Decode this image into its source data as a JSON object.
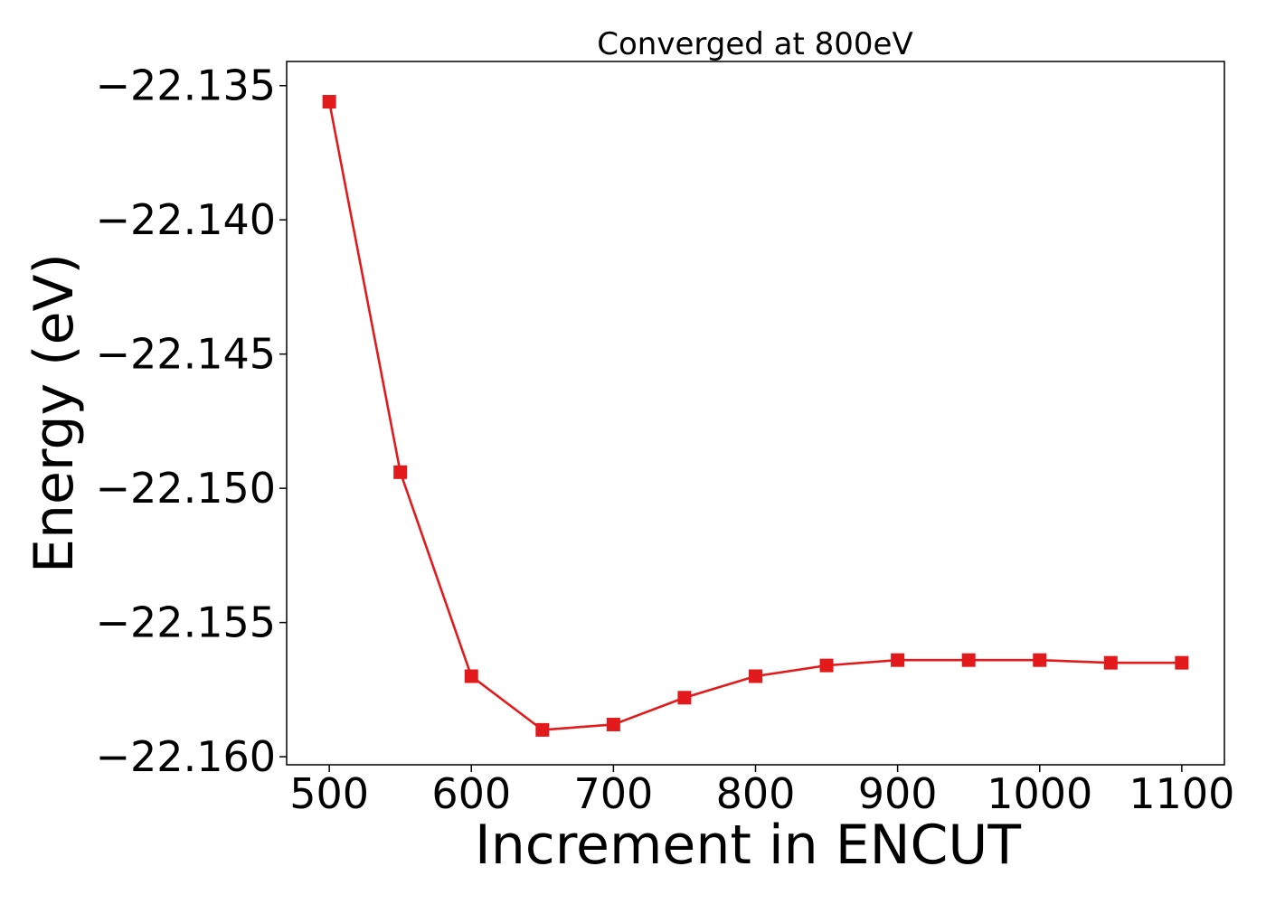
{
  "chart_data": {
    "type": "line",
    "title": "Converged at 800eV",
    "xlabel": "Increment in ENCUT",
    "ylabel": "Energy (eV)",
    "xlim": [
      470,
      1130
    ],
    "ylim": [
      -22.1603,
      -22.1341
    ],
    "x_ticks": [
      {
        "value": 500,
        "label": "500"
      },
      {
        "value": 600,
        "label": "600"
      },
      {
        "value": 700,
        "label": "700"
      },
      {
        "value": 800,
        "label": "800"
      },
      {
        "value": 900,
        "label": "900"
      },
      {
        "value": 1000,
        "label": "1000"
      },
      {
        "value": 1100,
        "label": "1100"
      }
    ],
    "y_ticks": [
      {
        "value": -22.135,
        "label": "−22.135"
      },
      {
        "value": -22.14,
        "label": "−22.140"
      },
      {
        "value": -22.145,
        "label": "−22.145"
      },
      {
        "value": -22.15,
        "label": "−22.150"
      },
      {
        "value": -22.155,
        "label": "−22.155"
      },
      {
        "value": -22.16,
        "label": "−22.160"
      }
    ],
    "grid": false,
    "series": [
      {
        "color": "#e31a1c",
        "marker": "square",
        "x": [
          500,
          550,
          600,
          650,
          700,
          750,
          800,
          850,
          900,
          950,
          1000,
          1050,
          1100
        ],
        "y": [
          -22.1356,
          -22.1494,
          -22.157,
          -22.159,
          -22.1588,
          -22.1578,
          -22.157,
          -22.1566,
          -22.1564,
          -22.1564,
          -22.1564,
          -22.1565,
          -22.1565
        ]
      }
    ]
  }
}
